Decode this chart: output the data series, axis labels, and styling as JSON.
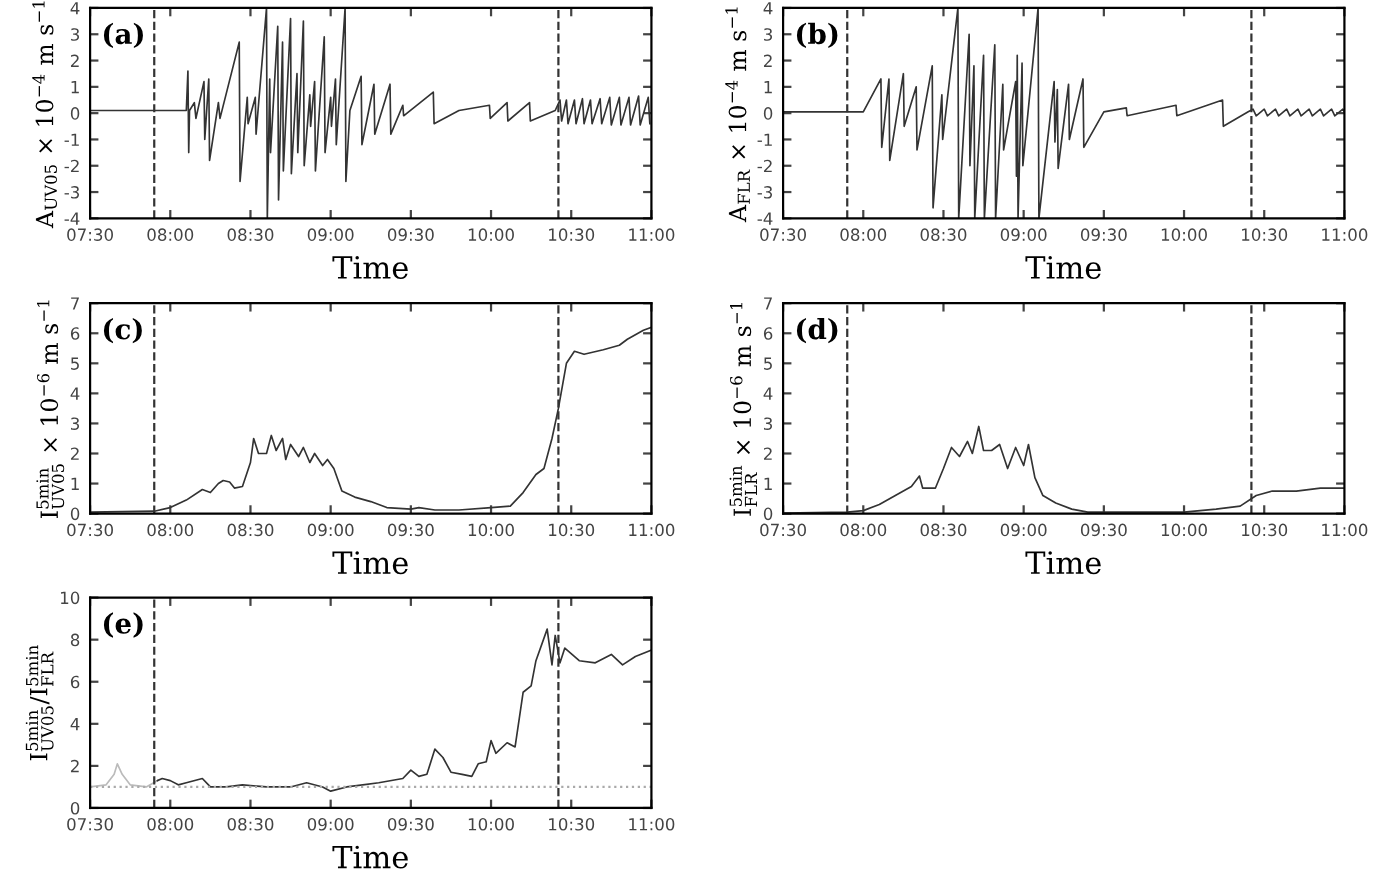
{
  "chart_data": [
    {
      "type": "line",
      "xlabel": "Time",
      "ylabel": "A$_{UV05}$ × 10$^{−4}$ m s$^{−1}$",
      "annotations": [
        "(a)"
      ],
      "xlim": [
        7.5,
        11
      ],
      "ylim": [
        -4,
        4
      ],
      "yticks": [
        -4,
        -3,
        -2,
        -1,
        0,
        1,
        2,
        3,
        4
      ],
      "xticks": [
        {
          "value": 7.5,
          "label": "07:30"
        },
        {
          "value": 8,
          "label": "08:00"
        },
        {
          "value": 8.5,
          "label": "08:30"
        },
        {
          "value": 9,
          "label": "09:00"
        },
        {
          "value": 9.5,
          "label": "09:30"
        },
        {
          "value": 10,
          "label": "10:00"
        },
        {
          "value": 10.5,
          "label": "10:30"
        },
        {
          "value": 11,
          "label": "11:00"
        }
      ],
      "ref_lines": [
        {
          "axis": "x",
          "value": 7.9,
          "line_style": "dashed",
          "color": "#333333"
        },
        {
          "axis": "x",
          "value": 10.42,
          "line_style": "dashed",
          "color": "#333333"
        }
      ],
      "series": [
        {
          "color": "#333333",
          "x": [
            7.5,
            7.9,
            8.1,
            8.11,
            8.115,
            8.12,
            8.15,
            8.16,
            8.21,
            8.215,
            8.24,
            8.245,
            8.3,
            8.31,
            8.43,
            8.435,
            8.48,
            8.485,
            8.53,
            8.535,
            8.6,
            8.605,
            8.62,
            8.625,
            8.67,
            8.675,
            8.7,
            8.705,
            8.75,
            8.755,
            8.79,
            8.795,
            8.83,
            8.835,
            8.87,
            8.875,
            8.9,
            8.905,
            8.96,
            8.965,
            9.0,
            9.005,
            9.03,
            9.035,
            9.09,
            9.095,
            9.12,
            9.19,
            9.195,
            9.27,
            9.275,
            9.37,
            9.375,
            9.45,
            9.455,
            9.64,
            9.645,
            9.8,
            9.99,
            9.995,
            10.1,
            10.105,
            10.24,
            10.245,
            10.4,
            10.43,
            10.44,
            10.47,
            10.48,
            10.52,
            10.53,
            10.57,
            10.58,
            10.62,
            10.63,
            10.68,
            10.69,
            10.74,
            10.75,
            10.8,
            10.81,
            10.86,
            10.87,
            10.92,
            10.93,
            10.98,
            10.99
          ],
          "values": [
            0.1,
            0.1,
            0.1,
            1.6,
            -1.5,
            0.1,
            0.4,
            -0.2,
            1.2,
            -1.0,
            1.3,
            -1.8,
            0.4,
            -0.2,
            2.7,
            -2.6,
            0.6,
            -0.4,
            0.6,
            -0.8,
            4.0,
            -4.0,
            1.3,
            -1.5,
            3.3,
            -3.3,
            2.7,
            -2.2,
            3.6,
            -2.3,
            1.5,
            -1.5,
            3.5,
            -2.0,
            0.7,
            -0.5,
            1.2,
            -2.2,
            2.9,
            -1.5,
            0.6,
            -0.5,
            1.3,
            -1.2,
            4.0,
            -2.6,
            0.1,
            1.4,
            -1.2,
            1.1,
            -0.8,
            1.1,
            -0.8,
            0.3,
            -0.1,
            0.8,
            -0.4,
            0.1,
            0.3,
            -0.2,
            0.4,
            -0.3,
            0.4,
            -0.3,
            0.1,
            0.5,
            -0.3,
            0.5,
            -0.4,
            0.5,
            -0.4,
            0.55,
            -0.4,
            0.5,
            -0.4,
            0.55,
            -0.4,
            0.6,
            -0.45,
            0.6,
            -0.45,
            0.6,
            -0.45,
            0.65,
            -0.45,
            0.6,
            -0.4
          ]
        }
      ]
    },
    {
      "type": "line",
      "xlabel": "Time",
      "ylabel": "A$_{FLR}$ × 10$^{−4}$ m s$^{−1}$",
      "annotations": [
        "(b)"
      ],
      "xlim": [
        7.5,
        11
      ],
      "ylim": [
        -4,
        4
      ],
      "yticks": [
        -4,
        -3,
        -2,
        -1,
        0,
        1,
        2,
        3,
        4
      ],
      "xticks": [
        {
          "value": 7.5,
          "label": "07:30"
        },
        {
          "value": 8,
          "label": "08:00"
        },
        {
          "value": 8.5,
          "label": "08:30"
        },
        {
          "value": 9,
          "label": "09:00"
        },
        {
          "value": 9.5,
          "label": "09:30"
        },
        {
          "value": 10,
          "label": "10:00"
        },
        {
          "value": 10.5,
          "label": "10:30"
        },
        {
          "value": 11,
          "label": "11:00"
        }
      ],
      "ref_lines": [
        {
          "axis": "x",
          "value": 7.9,
          "line_style": "dashed",
          "color": "#333333"
        },
        {
          "axis": "x",
          "value": 10.42,
          "line_style": "dashed",
          "color": "#333333"
        }
      ],
      "series": [
        {
          "color": "#333333",
          "x": [
            7.5,
            8.0,
            8.11,
            8.115,
            8.16,
            8.165,
            8.25,
            8.255,
            8.33,
            8.335,
            8.43,
            8.435,
            8.49,
            8.495,
            8.59,
            8.595,
            8.66,
            8.665,
            8.69,
            8.695,
            8.75,
            8.755,
            8.82,
            8.825,
            8.87,
            8.875,
            8.95,
            8.955,
            8.96,
            8.965,
            8.99,
            8.995,
            9.09,
            9.095,
            9.19,
            9.195,
            9.21,
            9.215,
            9.28,
            9.285,
            9.37,
            9.375,
            9.5,
            9.64,
            9.645,
            9.95,
            9.955,
            10.24,
            10.245,
            10.4,
            10.43,
            10.45,
            10.5,
            10.52,
            10.57,
            10.59,
            10.64,
            10.66,
            10.71,
            10.73,
            10.78,
            10.8,
            10.85,
            10.87,
            10.92,
            10.94,
            10.99,
            11.0
          ],
          "values": [
            0.05,
            0.05,
            1.3,
            -1.3,
            1.3,
            -1.8,
            1.5,
            -0.5,
            1.0,
            -1.4,
            1.8,
            -3.6,
            0.7,
            -1.0,
            4.0,
            -4.0,
            3.0,
            -2.0,
            1.8,
            -4.0,
            2.2,
            -4.0,
            2.6,
            -4.0,
            1.1,
            -1.4,
            1.2,
            -2.4,
            2.2,
            -4.0,
            1.9,
            -2.0,
            4.0,
            -4.0,
            1.2,
            -1.1,
            0.9,
            -2.1,
            1.1,
            -1.0,
            1.3,
            -1.3,
            0.05,
            0.2,
            -0.1,
            0.3,
            -0.1,
            0.5,
            -0.5,
            0.05,
            0.15,
            -0.1,
            0.15,
            -0.1,
            0.15,
            -0.1,
            0.15,
            -0.1,
            0.15,
            -0.1,
            0.15,
            -0.1,
            0.15,
            -0.1,
            0.15,
            -0.1,
            0.15,
            0.05
          ]
        }
      ]
    },
    {
      "type": "line",
      "xlabel": "Time",
      "ylabel": "I$^{5min}$$_{UV05}$ × 10$^{−6}$ m s$^{−1}$",
      "annotations": [
        "(c)"
      ],
      "xlim": [
        7.5,
        11
      ],
      "ylim": [
        0,
        7
      ],
      "yticks": [
        0,
        1,
        2,
        3,
        4,
        5,
        6,
        7
      ],
      "xticks": [
        {
          "value": 7.5,
          "label": "07:30"
        },
        {
          "value": 8,
          "label": "08:00"
        },
        {
          "value": 8.5,
          "label": "08:30"
        },
        {
          "value": 9,
          "label": "09:00"
        },
        {
          "value": 9.5,
          "label": "09:30"
        },
        {
          "value": 10,
          "label": "10:00"
        },
        {
          "value": 10.5,
          "label": "10:30"
        },
        {
          "value": 11,
          "label": "11:00"
        }
      ],
      "ref_lines": [
        {
          "axis": "x",
          "value": 7.9,
          "line_style": "dashed",
          "color": "#333333"
        },
        {
          "axis": "x",
          "value": 10.42,
          "line_style": "dashed",
          "color": "#333333"
        }
      ],
      "series": [
        {
          "color": "#333333",
          "x": [
            7.5,
            7.9,
            8.0,
            8.1,
            8.2,
            8.25,
            8.3,
            8.33,
            8.37,
            8.4,
            8.45,
            8.5,
            8.52,
            8.55,
            8.6,
            8.63,
            8.66,
            8.7,
            8.72,
            8.75,
            8.8,
            8.83,
            8.87,
            8.9,
            8.95,
            8.98,
            9.02,
            9.07,
            9.15,
            9.25,
            9.35,
            9.5,
            9.55,
            9.65,
            9.8,
            10.0,
            10.12,
            10.2,
            10.28,
            10.33,
            10.38,
            10.42,
            10.47,
            10.52,
            10.58,
            10.7,
            10.8,
            10.85,
            10.95,
            11.0
          ],
          "values": [
            0.05,
            0.08,
            0.2,
            0.45,
            0.8,
            0.7,
            1.0,
            1.1,
            1.05,
            0.85,
            0.9,
            1.7,
            2.5,
            2.0,
            2.0,
            2.6,
            2.1,
            2.5,
            1.8,
            2.3,
            1.9,
            2.2,
            1.7,
            2.0,
            1.6,
            1.8,
            1.5,
            0.75,
            0.55,
            0.4,
            0.2,
            0.15,
            0.2,
            0.12,
            0.12,
            0.2,
            0.25,
            0.7,
            1.3,
            1.5,
            2.5,
            3.5,
            5.0,
            5.4,
            5.3,
            5.45,
            5.6,
            5.8,
            6.1,
            6.2
          ]
        }
      ]
    },
    {
      "type": "line",
      "xlabel": "Time",
      "ylabel": "I$^{5min}$$_{FLR}$ × 10$^{−6}$ m s$^{−1}$",
      "annotations": [
        "(d)"
      ],
      "xlim": [
        7.5,
        11
      ],
      "ylim": [
        0,
        7
      ],
      "yticks": [
        0,
        1,
        2,
        3,
        4,
        5,
        6,
        7
      ],
      "xticks": [
        {
          "value": 7.5,
          "label": "07:30"
        },
        {
          "value": 8,
          "label": "08:00"
        },
        {
          "value": 8.5,
          "label": "08:30"
        },
        {
          "value": 9,
          "label": "09:00"
        },
        {
          "value": 9.5,
          "label": "09:30"
        },
        {
          "value": 10,
          "label": "10:00"
        },
        {
          "value": 10.5,
          "label": "10:30"
        },
        {
          "value": 11,
          "label": "11:00"
        }
      ],
      "ref_lines": [
        {
          "axis": "x",
          "value": 7.9,
          "line_style": "dashed",
          "color": "#333333"
        },
        {
          "axis": "x",
          "value": 10.42,
          "line_style": "dashed",
          "color": "#333333"
        }
      ],
      "series": [
        {
          "color": "#333333",
          "x": [
            7.5,
            7.9,
            8.0,
            8.1,
            8.2,
            8.3,
            8.35,
            8.37,
            8.45,
            8.5,
            8.55,
            8.6,
            8.65,
            8.68,
            8.72,
            8.75,
            8.8,
            8.85,
            8.9,
            8.95,
            9.0,
            9.03,
            9.07,
            9.12,
            9.2,
            9.3,
            9.4,
            10.0,
            10.2,
            10.35,
            10.45,
            10.55,
            10.7,
            10.85,
            11.0
          ],
          "values": [
            0.02,
            0.05,
            0.1,
            0.3,
            0.6,
            0.9,
            1.25,
            0.85,
            0.85,
            1.5,
            2.2,
            1.9,
            2.4,
            2.0,
            2.9,
            2.1,
            2.1,
            2.3,
            1.5,
            2.2,
            1.6,
            2.3,
            1.2,
            0.6,
            0.35,
            0.15,
            0.05,
            0.05,
            0.15,
            0.25,
            0.6,
            0.75,
            0.75,
            0.85,
            0.85
          ]
        }
      ]
    },
    {
      "type": "line",
      "xlabel": "Time",
      "ylabel": "I$^{5min}$$_{UV05}$/I$^{5min}$$_{FLR}$",
      "annotations": [
        "(e)"
      ],
      "xlim": [
        7.5,
        11
      ],
      "ylim": [
        0,
        10
      ],
      "yticks": [
        0,
        2,
        4,
        6,
        8,
        10
      ],
      "xticks": [
        {
          "value": 7.5,
          "label": "07:30"
        },
        {
          "value": 8,
          "label": "08:00"
        },
        {
          "value": 8.5,
          "label": "08:30"
        },
        {
          "value": 9,
          "label": "09:00"
        },
        {
          "value": 9.5,
          "label": "09:30"
        },
        {
          "value": 10,
          "label": "10:00"
        },
        {
          "value": 10.5,
          "label": "10:30"
        },
        {
          "value": 11,
          "label": "11:00"
        }
      ],
      "ref_lines": [
        {
          "axis": "x",
          "value": 7.9,
          "line_style": "dashed",
          "color": "#333333"
        },
        {
          "axis": "x",
          "value": 10.42,
          "line_style": "dashed",
          "color": "#333333"
        },
        {
          "axis": "y",
          "value": 1,
          "line_style": "dotted",
          "color": "#aaaaaa"
        }
      ],
      "series": [
        {
          "color": "#bbbbbb",
          "x": [
            7.5,
            7.6,
            7.65,
            7.67,
            7.7,
            7.75,
            7.85,
            7.92
          ],
          "values": [
            1.0,
            1.1,
            1.6,
            2.1,
            1.6,
            1.1,
            1.0,
            1.3
          ]
        },
        {
          "color": "#333333",
          "x": [
            7.92,
            7.95,
            8.0,
            8.05,
            8.1,
            8.2,
            8.25,
            8.35,
            8.45,
            8.6,
            8.75,
            8.85,
            8.95,
            9.0,
            9.1,
            9.2,
            9.3,
            9.45,
            9.5,
            9.55,
            9.6,
            9.65,
            9.7,
            9.75,
            9.82,
            9.88,
            9.92,
            9.97,
            10.0,
            10.03,
            10.1,
            10.15,
            10.2,
            10.25,
            10.28,
            10.35,
            10.38,
            10.4,
            10.43,
            10.46,
            10.55,
            10.65,
            10.75,
            10.82,
            10.9,
            11.0
          ],
          "values": [
            1.3,
            1.4,
            1.3,
            1.1,
            1.2,
            1.4,
            1.0,
            1.0,
            1.1,
            1.0,
            1.0,
            1.2,
            1.0,
            0.8,
            1.0,
            1.1,
            1.2,
            1.4,
            1.8,
            1.5,
            1.6,
            2.8,
            2.4,
            1.7,
            1.6,
            1.5,
            2.1,
            2.2,
            3.2,
            2.6,
            3.1,
            2.9,
            5.5,
            5.8,
            7.0,
            8.5,
            6.8,
            8.2,
            6.9,
            7.6,
            7.0,
            6.9,
            7.3,
            6.8,
            7.2,
            7.5
          ]
        }
      ]
    }
  ]
}
